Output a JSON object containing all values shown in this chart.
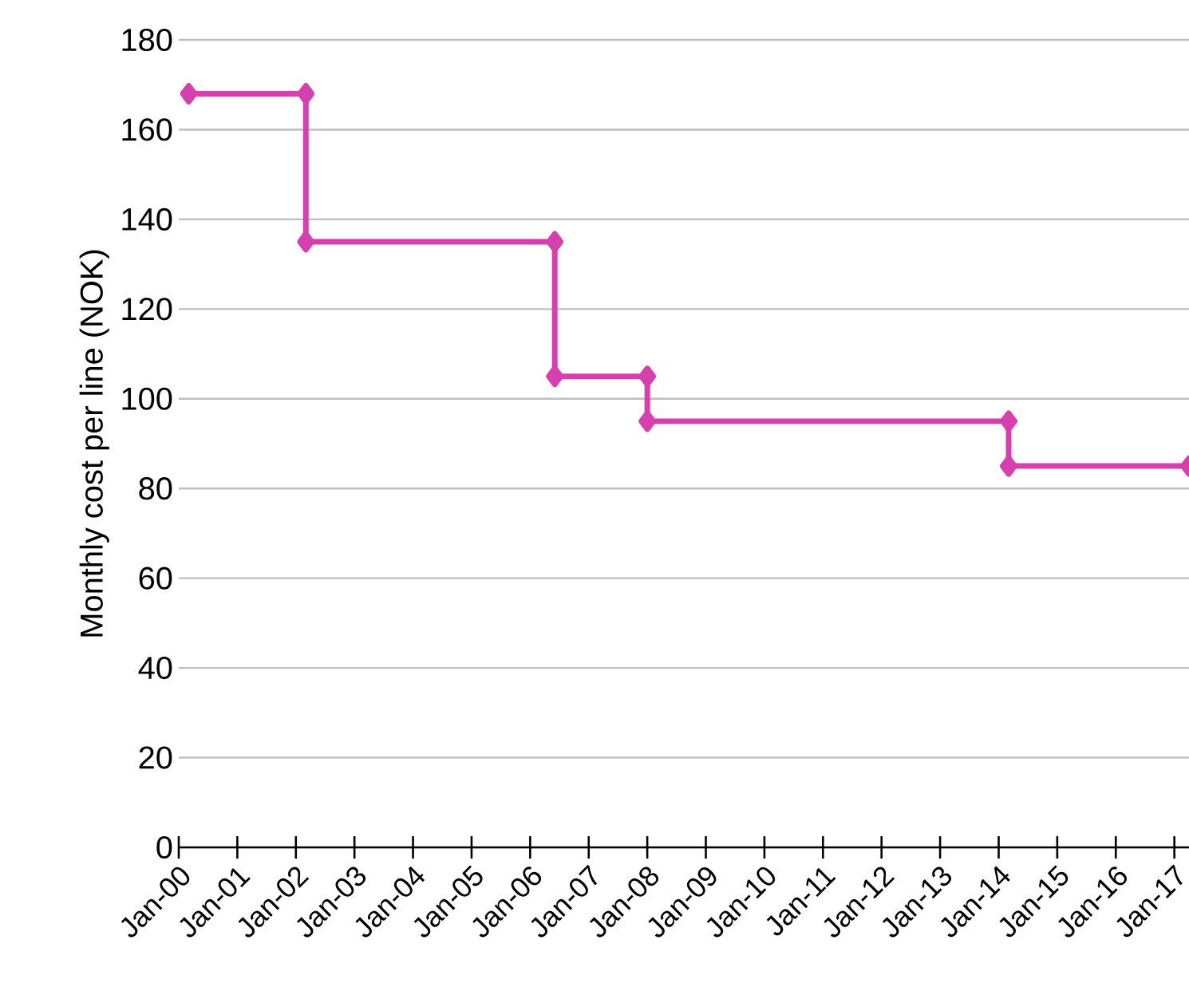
{
  "chart_data": {
    "type": "line",
    "ylabel": "Monthly cost per line (NOK)",
    "series": [
      {
        "color": "#d63fae",
        "x": [
          "2000-03",
          "2002-03",
          "2002-03",
          "2006-06",
          "2006-06",
          "2008-01",
          "2008-01",
          "2014-03",
          "2014-03",
          "2017-04"
        ],
        "values": [
          168,
          168,
          135,
          135,
          105,
          105,
          95,
          95,
          85,
          85
        ]
      }
    ],
    "xlim": [
      "2000-01",
      "2017-04"
    ],
    "xticks": [
      {
        "value": "2000-01",
        "label": "Jan-00"
      },
      {
        "value": "2001-01",
        "label": "Jan-01"
      },
      {
        "value": "2002-01",
        "label": "Jan-02"
      },
      {
        "value": "2003-01",
        "label": "Jan-03"
      },
      {
        "value": "2004-01",
        "label": "Jan-04"
      },
      {
        "value": "2005-01",
        "label": "Jan-05"
      },
      {
        "value": "2006-01",
        "label": "Jan-06"
      },
      {
        "value": "2007-01",
        "label": "Jan-07"
      },
      {
        "value": "2008-01",
        "label": "Jan-08"
      },
      {
        "value": "2009-01",
        "label": "Jan-09"
      },
      {
        "value": "2010-01",
        "label": "Jan-10"
      },
      {
        "value": "2011-01",
        "label": "Jan-11"
      },
      {
        "value": "2012-01",
        "label": "Jan-12"
      },
      {
        "value": "2013-01",
        "label": "Jan-13"
      },
      {
        "value": "2014-01",
        "label": "Jan-14"
      },
      {
        "value": "2015-01",
        "label": "Jan-15"
      },
      {
        "value": "2016-01",
        "label": "Jan-16"
      },
      {
        "value": "2017-01",
        "label": "Jan-17"
      }
    ],
    "ylim": [
      0,
      180
    ],
    "yticks": [
      0,
      20,
      40,
      60,
      80,
      100,
      120,
      140,
      160,
      180
    ],
    "grid": "y",
    "marker": "diamond",
    "line_style": "solid"
  }
}
